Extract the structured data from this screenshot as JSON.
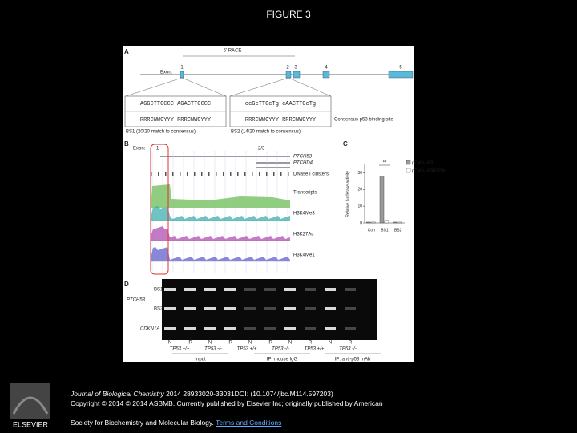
{
  "header": {
    "title": "FIGURE 3"
  },
  "figure": {
    "panel_a": {
      "label": "A",
      "race": "5' RACE",
      "exon_label": "Exon:",
      "exons": [
        "1",
        "2",
        "3",
        "4",
        "5"
      ],
      "bs1_seq": "AGGCTTGCCC AGACTTGCCC",
      "bs2_seq": "ccGcTTGcTg cAACTTGcTg",
      "consensus_seq": "RRRCWWGYYY RRRCWWGYYY",
      "consensus_label": "Consensus p53 binding site",
      "bs1_caption": "BS1 (20/20 match to consensus)",
      "bs2_caption": "BS2 (14/20 match to consensus)"
    },
    "panel_b": {
      "label": "B",
      "exon_label": "Exon:",
      "exon_1": "1",
      "exon_23": "2/3",
      "tracks": [
        "PTCH53",
        "PTCHD4",
        "DNase I clusters",
        "Transcripts",
        "H3K4Me3",
        "H3K27Ac",
        "H3K4Me1"
      ]
    },
    "panel_c": {
      "label": "C",
      "ylabel": "Relative luciferase activity",
      "annotation": "**",
      "categories": [
        "Con",
        "BS1",
        "BS2"
      ],
      "series": [
        {
          "name": "pCMV-p53",
          "color": "#9a9a9a",
          "values": [
            0.5,
            28,
            0.5
          ]
        },
        {
          "name": "pCMV-p53R175H",
          "color": "#ffffff",
          "values": [
            0.5,
            1.5,
            0.5
          ]
        }
      ],
      "ylim": [
        0,
        35
      ],
      "yticks": [
        0,
        10,
        20,
        30
      ]
    },
    "panel_d": {
      "label": "D",
      "gene": "PTCH53",
      "rows": [
        "BS1",
        "BS2",
        "CDKN1A"
      ],
      "lanes": [
        "N",
        "IR",
        "N",
        "IR",
        "N",
        "IR",
        "N",
        "R",
        "N",
        "R"
      ],
      "groups": [
        "TP53 +/+",
        "TP53 -/-",
        "TP53 +/+",
        "TP53 -/-",
        "TP53 +/+",
        "TP53 -/-"
      ],
      "ips": [
        "Input",
        "IP: mouse IgG",
        "IP: anti-p53 mAb"
      ]
    }
  },
  "footer": {
    "journal": "Journal of Biological Chemistry",
    "citation": "2014 28933020-33031DOI: (10.1074/jbc.M114.597203)",
    "copyright": "Copyright © 2014 © 2014 ASBMB. Currently published by Elsevier Inc; originally published by American",
    "copyright2": "Society for Biochemistry and Molecular Biology.",
    "terms": "Terms and Conditions",
    "publisher": "ELSEVIER"
  }
}
